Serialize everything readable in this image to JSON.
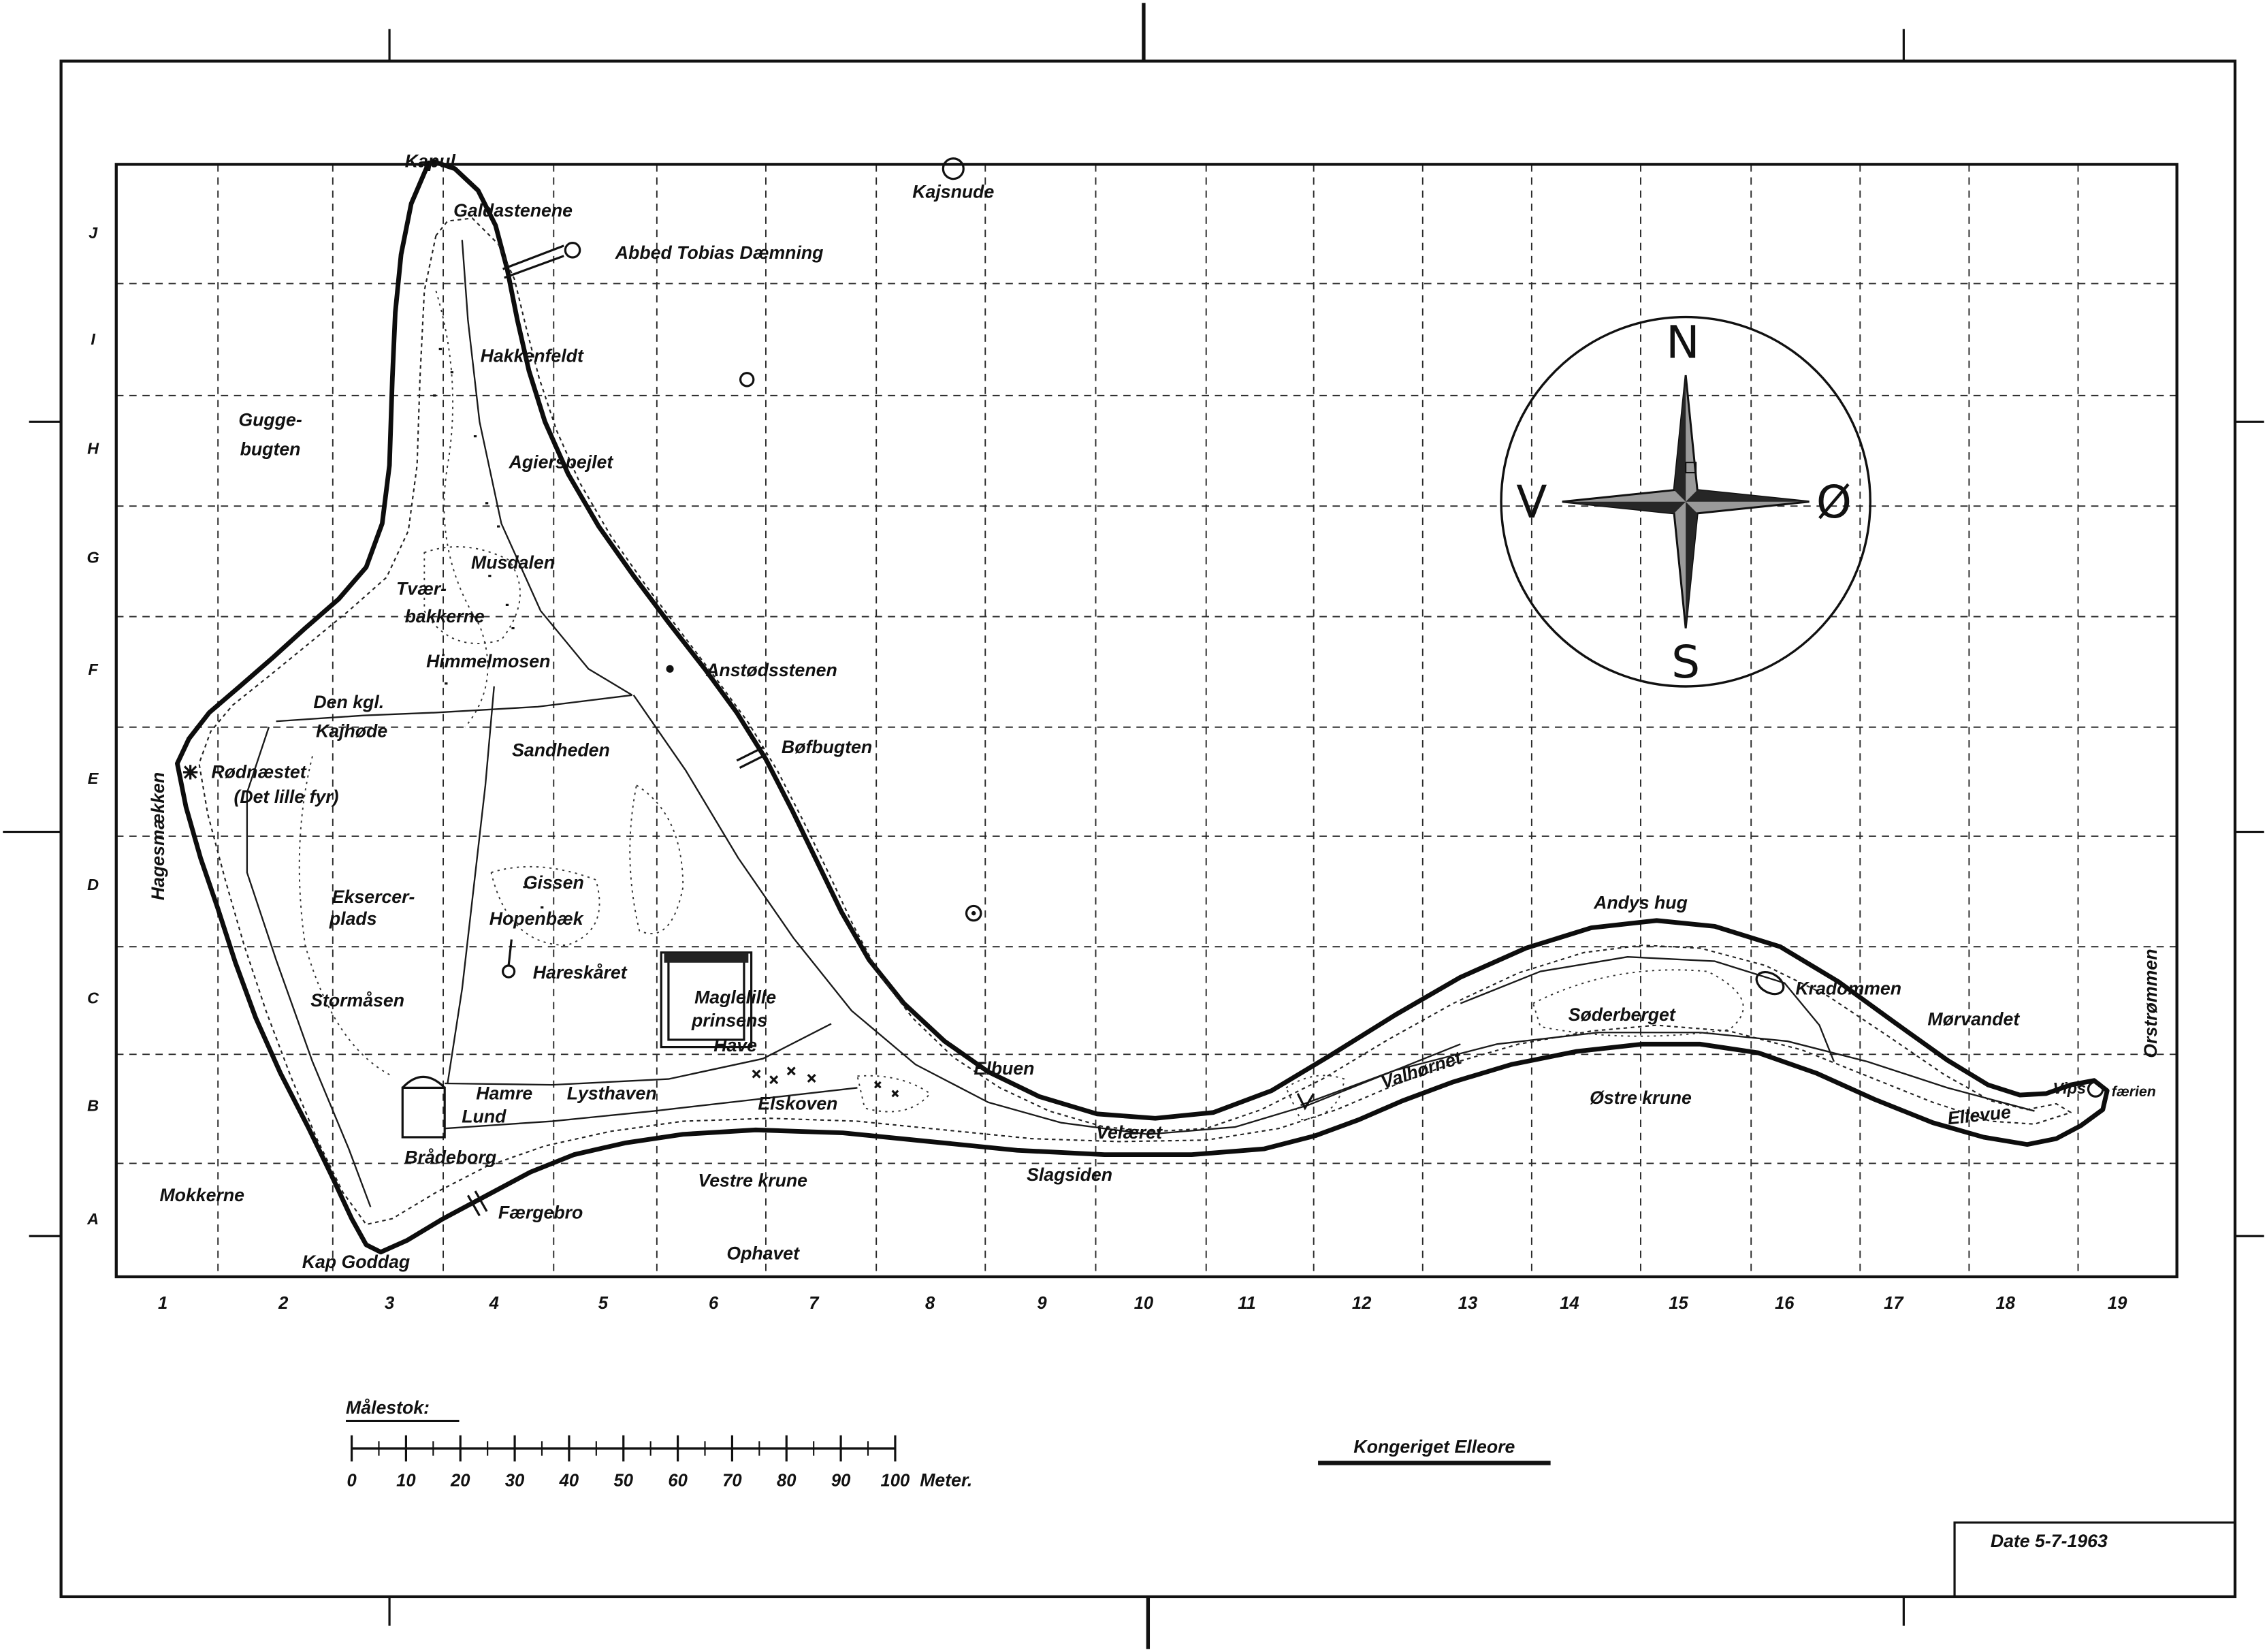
{
  "title": "Kongeriget Elleore",
  "date": "Date 5-7-1963",
  "scale": {
    "label": "Målestok:",
    "ticks": [
      "0",
      "10",
      "20",
      "30",
      "40",
      "50",
      "60",
      "70",
      "80",
      "90",
      "100"
    ],
    "unit": "Meter."
  },
  "compass": {
    "north": "N",
    "east": "Ø",
    "south": "S",
    "west": "V"
  },
  "grid": {
    "columns": [
      "1",
      "2",
      "3",
      "4",
      "5",
      "6",
      "7",
      "8",
      "9",
      "10",
      "11",
      "12",
      "13",
      "14",
      "15",
      "16",
      "17",
      "18",
      "19"
    ],
    "rows": [
      "J",
      "I",
      "H",
      "G",
      "F",
      "E",
      "D",
      "C",
      "B",
      "A"
    ]
  },
  "places": {
    "kapul": "Kapul",
    "kajsnude": "Kajsnude",
    "galdastenene": "Galdastenene",
    "abbed_tobias": "Abbed Tobias Dæmning",
    "hakkenfeldt": "Hakkenfeldt",
    "guggebugten": [
      "Gugge-",
      "bugten"
    ],
    "agierspejlet": "Agierspejlet",
    "musdalen": "Musdalen",
    "tvaerbakkerne": [
      "Tvær-",
      "bakkerne"
    ],
    "himmelmosen": "Himmelmosen",
    "anstoedsstenen": "Anstødsstenen",
    "kajhoede": [
      "Den kgl.",
      "Kajhøde"
    ],
    "sandheden": "Sandheden",
    "boefbugten": "Bøfbugten",
    "hagesmaekken": "Hagesmækken",
    "roednaestet": [
      "Rødnæstet",
      "(Det lille fyr)"
    ],
    "eksercerplads": [
      "Eksercer-",
      "plads"
    ],
    "gissen": "Gissen",
    "hopenbaek": "Hopenbæk",
    "hareskaaret": "Hareskåret",
    "maglelille": [
      "Maglelille",
      "prinsens",
      "Have"
    ],
    "stormaasen": "Stormåsen",
    "hamre_lund": [
      "Hamre",
      "Lund"
    ],
    "lysthaven": "Lysthaven",
    "elskoven": "Elskoven",
    "elbuen": "Elbuen",
    "braadeborg": "Brådeborg",
    "mokkerne": "Mokkerne",
    "vestre_krune": "Vestre krune",
    "slagsiden": "Slagsiden",
    "faergebro": "Færgebro",
    "ophavet": "Ophavet",
    "kap_goddag": "Kap Goddag",
    "velaeret": "Velæret",
    "andys_hug": "Andys hug",
    "kradommen": "Kradommen",
    "moervandet": "Mørvandet",
    "soederberget": "Søderberget",
    "valhoernet": "Valhørnet",
    "oestre_krune": "Østre krune",
    "ellevue": "Ellevue",
    "vips": "Vips",
    "faerien": "færien",
    "orstroemmen": "Orstrømmen"
  },
  "colors": {
    "ink": "#111111",
    "paper": "#ffffff"
  }
}
